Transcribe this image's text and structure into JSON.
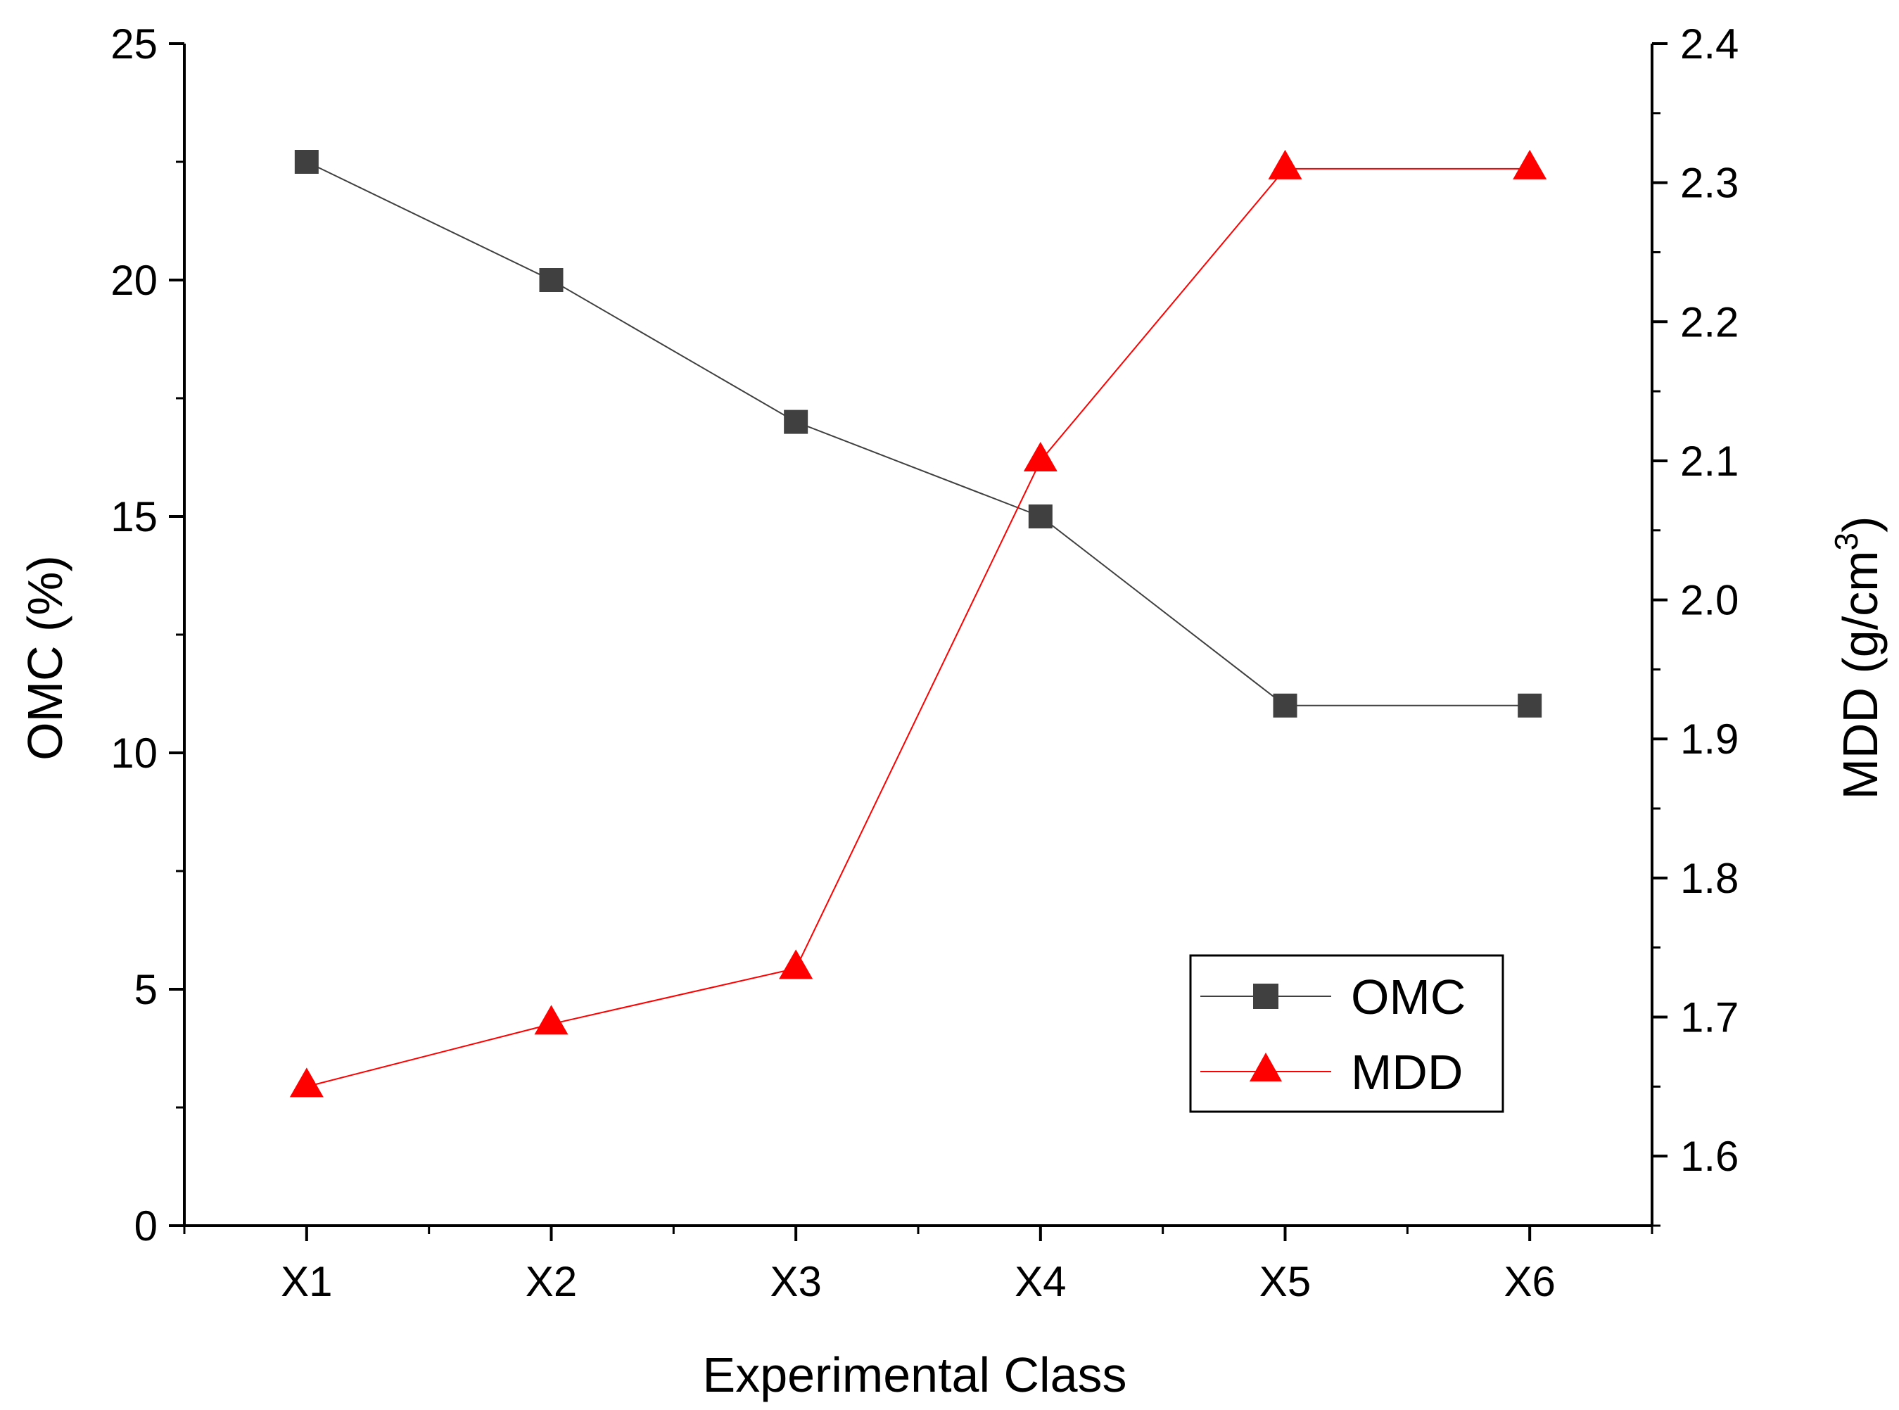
{
  "chart_data": {
    "type": "line",
    "title": "",
    "xlabel": "Experimental Class",
    "ylabel_left": "OMC (%)",
    "ylabel_right": {
      "main": "MDD (g/cm",
      "superscript": "3",
      "close": ")"
    },
    "categories": [
      "X1",
      "X2",
      "X3",
      "X4",
      "X5",
      "X6"
    ],
    "y_left": {
      "min": 0,
      "max": 25,
      "ticks": [
        "0",
        "5",
        "10",
        "15",
        "20",
        "25"
      ]
    },
    "y_right": {
      "min": 1.55,
      "max": 2.4,
      "ticks": [
        "1.6",
        "1.7",
        "1.8",
        "1.9",
        "2.0",
        "2.1",
        "2.2",
        "2.3",
        "2.4"
      ]
    },
    "series": [
      {
        "name": "OMC",
        "axis": "left",
        "marker": "square",
        "color": "#404040",
        "line_color": "#404040",
        "values": [
          22.5,
          20,
          17,
          15,
          11,
          11
        ]
      },
      {
        "name": "MDD",
        "axis": "right",
        "marker": "triangle",
        "color": "#ff0000",
        "line_color": "#ff0000",
        "values": [
          1.65,
          1.695,
          1.735,
          2.1,
          2.31,
          2.31
        ]
      }
    ],
    "legend": {
      "position": "bottom-right",
      "entries": [
        "OMC",
        "MDD"
      ]
    },
    "grid": false
  }
}
